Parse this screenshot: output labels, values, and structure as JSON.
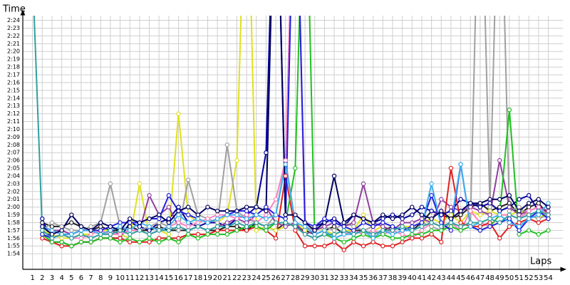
{
  "chart_data": {
    "type": "line",
    "y_label": "Time",
    "x_label": "Laps",
    "x": [
      1,
      2,
      3,
      4,
      5,
      6,
      7,
      8,
      9,
      10,
      11,
      12,
      13,
      14,
      15,
      16,
      17,
      18,
      19,
      20,
      21,
      22,
      23,
      24,
      25,
      26,
      27,
      28,
      29,
      30,
      31,
      32,
      33,
      34,
      35,
      36,
      37,
      38,
      39,
      40,
      41,
      42,
      43,
      44,
      45,
      46,
      47,
      48,
      49,
      50,
      51,
      52,
      53,
      54
    ],
    "xticks": [
      1,
      2,
      3,
      4,
      5,
      6,
      7,
      8,
      9,
      10,
      11,
      12,
      13,
      14,
      15,
      16,
      17,
      18,
      19,
      20,
      21,
      22,
      23,
      24,
      25,
      26,
      27,
      28,
      29,
      30,
      31,
      32,
      33,
      34,
      35,
      36,
      37,
      38,
      39,
      40,
      41,
      42,
      43,
      44,
      45,
      46,
      47,
      48,
      49,
      50,
      51,
      52,
      53,
      54
    ],
    "xlim": [
      0,
      55.5
    ],
    "ylim": [
      112,
      144.6
    ],
    "yticks": [
      {
        "value": 114,
        "label": "1:54"
      },
      {
        "value": 115,
        "label": "1:55"
      },
      {
        "value": 116,
        "label": "1:56"
      },
      {
        "value": 117,
        "label": "1:57"
      },
      {
        "value": 118,
        "label": "1:58"
      },
      {
        "value": 119,
        "label": "1:59"
      },
      {
        "value": 120,
        "label": "2:00"
      },
      {
        "value": 121,
        "label": "2:01"
      },
      {
        "value": 122,
        "label": "2:02"
      },
      {
        "value": 123,
        "label": "2:03"
      },
      {
        "value": 124,
        "label": "2:04"
      },
      {
        "value": 125,
        "label": "2:05"
      },
      {
        "value": 126,
        "label": "2:06"
      },
      {
        "value": 127,
        "label": "2:07"
      },
      {
        "value": 128,
        "label": "2:08"
      },
      {
        "value": 129,
        "label": "2:09"
      },
      {
        "value": 130,
        "label": "2:10"
      },
      {
        "value": 131,
        "label": "2:11"
      },
      {
        "value": 132,
        "label": "2:12"
      },
      {
        "value": 133,
        "label": "2:13"
      },
      {
        "value": 134,
        "label": "2:14"
      },
      {
        "value": 135,
        "label": "2:15"
      },
      {
        "value": 136,
        "label": "2:16"
      },
      {
        "value": 137,
        "label": "2:17"
      },
      {
        "value": 138,
        "label": "2:18"
      },
      {
        "value": 139,
        "label": "2:19"
      },
      {
        "value": 140,
        "label": "2:20"
      },
      {
        "value": 141,
        "label": "2:21"
      },
      {
        "value": 142,
        "label": "2:22"
      },
      {
        "value": 143,
        "label": "2:23"
      },
      {
        "value": 144,
        "label": "2:24"
      }
    ],
    "grid": true,
    "series": [
      {
        "color": "#202020",
        "values": [
          null,
          118,
          117.5,
          117.5,
          118,
          117.5,
          117,
          117.5,
          117,
          117,
          117.5,
          117,
          117,
          117.5,
          117,
          117,
          117,
          117.5,
          117,
          117,
          117.5,
          117.5,
          117,
          118,
          117.5,
          117,
          118,
          117.5,
          117,
          116.5,
          117,
          117.5,
          116.5,
          117,
          117,
          116.5,
          117,
          117.5,
          117,
          117,
          118,
          119.5,
          119,
          118.5,
          119,
          120,
          120.5,
          119.5,
          120,
          120.5,
          119,
          120,
          120.5,
          119
        ]
      },
      {
        "color": "#0000a0",
        "values": [
          null,
          118.5,
          115.5,
          115.5,
          115,
          115.5,
          115.5,
          116,
          116,
          116,
          118,
          117.5,
          117,
          118,
          118.5,
          120,
          118,
          117.5,
          118,
          118,
          117.5,
          118.5,
          119,
          120,
          127,
          170,
          118,
          117.5,
          117,
          117.5,
          118,
          118.5,
          117.5,
          119,
          118.5,
          118,
          118.5,
          119,
          118.5,
          119,
          120,
          119.5,
          119,
          119.5,
          121,
          120.5,
          120,
          120.5,
          119.5,
          120,
          121,
          121.5,
          119.5,
          119
        ]
      },
      {
        "color": "#e0e020",
        "values": [
          null,
          117,
          116.5,
          116,
          116,
          116.5,
          116.5,
          117,
          117,
          116.5,
          116,
          123,
          116.5,
          117,
          116.5,
          132,
          119,
          118,
          118.5,
          118,
          119,
          126,
          170,
          117,
          117.5,
          117,
          117.5,
          118,
          117,
          117.5,
          117,
          116.5,
          117,
          117,
          119,
          117,
          117.5,
          117,
          117.5,
          117.5,
          118,
          118.5,
          118,
          119,
          118,
          119.5,
          119,
          119.5,
          119,
          119,
          119.5,
          119,
          118.5,
          119.5
        ]
      },
      {
        "color": "#a0a0a0",
        "values": [
          null,
          117,
          118,
          117.5,
          117,
          117,
          117.5,
          118,
          123,
          117.5,
          117,
          117,
          117.5,
          118,
          117.5,
          117,
          123.5,
          119,
          118.5,
          118,
          128,
          119.5,
          118.5,
          118,
          117.5,
          119,
          126,
          118,
          117.5,
          117,
          117.5,
          117,
          118,
          117.5,
          117,
          117.5,
          118,
          117.5,
          117,
          117.5,
          118,
          117.5,
          117,
          118,
          117.5,
          118,
          170,
          120,
          170,
          119.5,
          120,
          119,
          118.5,
          119
        ]
      },
      {
        "color": "#9040a0",
        "values": [
          null,
          117.5,
          117,
          117,
          116.5,
          117,
          117,
          116.5,
          117,
          116.5,
          117,
          117,
          121.5,
          119,
          120,
          117.5,
          117,
          117.5,
          117,
          117.5,
          118,
          118.5,
          118,
          119,
          120,
          118,
          117.5,
          118,
          116.5,
          117,
          117.5,
          118,
          117.5,
          118,
          123,
          118,
          117.5,
          117,
          118,
          118,
          118.5,
          118,
          121,
          120,
          119.5,
          120,
          119.5,
          119,
          126,
          120,
          119,
          119.5,
          120,
          119.5
        ]
      },
      {
        "color": "#ff80c0",
        "values": [
          null,
          116.5,
          116,
          116.5,
          116,
          116,
          116.5,
          117,
          116.5,
          116.5,
          117,
          117,
          116.5,
          117,
          117.5,
          118,
          117.5,
          118,
          118.5,
          119,
          119,
          118.5,
          119,
          118,
          119,
          121,
          126,
          170,
          116.5,
          116,
          116.5,
          116,
          116.5,
          117,
          116.5,
          117,
          116.5,
          117,
          116.5,
          116,
          117,
          118,
          117.5,
          118,
          117,
          119.5,
          118,
          117.5,
          119,
          119,
          118.5,
          119.5,
          120,
          119
        ]
      },
      {
        "color": "#e02020",
        "values": [
          null,
          116,
          115.5,
          115,
          115,
          115.5,
          115.5,
          116,
          116,
          116,
          115.5,
          115.5,
          115.5,
          116,
          116,
          116,
          116.5,
          116.5,
          116.5,
          117,
          117,
          117,
          117,
          117.5,
          117,
          116,
          124,
          117,
          115,
          115,
          115,
          115.5,
          114.5,
          115.5,
          115,
          115.5,
          115,
          115,
          115.5,
          116,
          116,
          116.5,
          115.5,
          125,
          118,
          117.5,
          117.5,
          118,
          116,
          117.5,
          118,
          118.5,
          118,
          118.5
        ]
      },
      {
        "color": "#20c020",
        "values": [
          null,
          116.5,
          115.5,
          115.5,
          115,
          115.5,
          115.5,
          116,
          116,
          115.5,
          116,
          115.5,
          116,
          115.5,
          116,
          115.5,
          116.5,
          116,
          116.5,
          116.5,
          116.5,
          117,
          117.5,
          117.5,
          117,
          118,
          118,
          125,
          170,
          116,
          116.5,
          116,
          115.5,
          116,
          116.5,
          116,
          116.5,
          116,
          116,
          116.5,
          116.5,
          117,
          117,
          117.5,
          117,
          117.5,
          117,
          117.5,
          119,
          132.5,
          116.5,
          117,
          116.5,
          117
        ]
      },
      {
        "color": "#2020e0",
        "values": [
          null,
          116.5,
          116,
          116.5,
          116.5,
          117,
          117,
          117,
          117.5,
          118,
          118,
          118,
          118.5,
          118.5,
          121.5,
          119.5,
          119,
          118.5,
          118,
          118.5,
          119,
          119.5,
          119.5,
          119,
          120,
          119,
          118.5,
          170,
          118,
          117.5,
          118.5,
          118,
          117.5,
          117,
          118,
          117.5,
          118,
          117.5,
          117,
          117.5,
          118,
          121.5,
          118,
          117,
          125.5,
          117.5,
          117,
          117.5,
          118,
          118.5,
          117,
          118.5,
          119.5,
          118.5
        ]
      },
      {
        "color": "#40b0f0",
        "values": [
          null,
          117.5,
          117,
          116.5,
          116.5,
          117,
          117,
          116.5,
          117,
          117.5,
          117,
          118,
          117.5,
          117,
          117.5,
          119,
          118,
          118.5,
          118,
          118.5,
          119,
          119,
          118.5,
          119,
          118.5,
          119,
          125.5,
          118,
          117.5,
          116.5,
          117,
          116,
          116.5,
          116.5,
          117,
          116,
          117,
          116.5,
          117,
          117,
          117.5,
          123,
          117.5,
          118,
          125.5,
          117.5,
          118,
          118.5,
          119,
          118,
          117.5,
          118.5,
          119,
          120.5
        ]
      },
      {
        "color": "#000060",
        "values": [
          null,
          117.5,
          116.5,
          117,
          119,
          117.5,
          117,
          118,
          117.5,
          117,
          118.5,
          118,
          118.5,
          119,
          118,
          119.5,
          120,
          119,
          120,
          119.5,
          119.5,
          119.5,
          120,
          120,
          119.5,
          170,
          119,
          119,
          118,
          117,
          118,
          124,
          118,
          119,
          118.5,
          118,
          119,
          118.5,
          119,
          120,
          119,
          118.5,
          119.5,
          118.5,
          119.5,
          120.5,
          120.5,
          121,
          121,
          121.5,
          119.5,
          120.5,
          121,
          120
        ]
      },
      {
        "color": "#30a0a0",
        "values": [
          150,
          117,
          116,
          116.5,
          116,
          116.5,
          116,
          116.5,
          116.5,
          117,
          116.5,
          117,
          116.5,
          117,
          117,
          117.5,
          117,
          117.5,
          117,
          117.5,
          117.5,
          118,
          117.5,
          118,
          117.5,
          118,
          118,
          117.5,
          116.5,
          116,
          116.5,
          116.5,
          117,
          116.5,
          117,
          116.5,
          117,
          117,
          117.5,
          117,
          117.5,
          118,
          117.5,
          118,
          117.5,
          118,
          118,
          118.5,
          118,
          119,
          118.5,
          119,
          119.5,
          119
        ]
      }
    ]
  }
}
